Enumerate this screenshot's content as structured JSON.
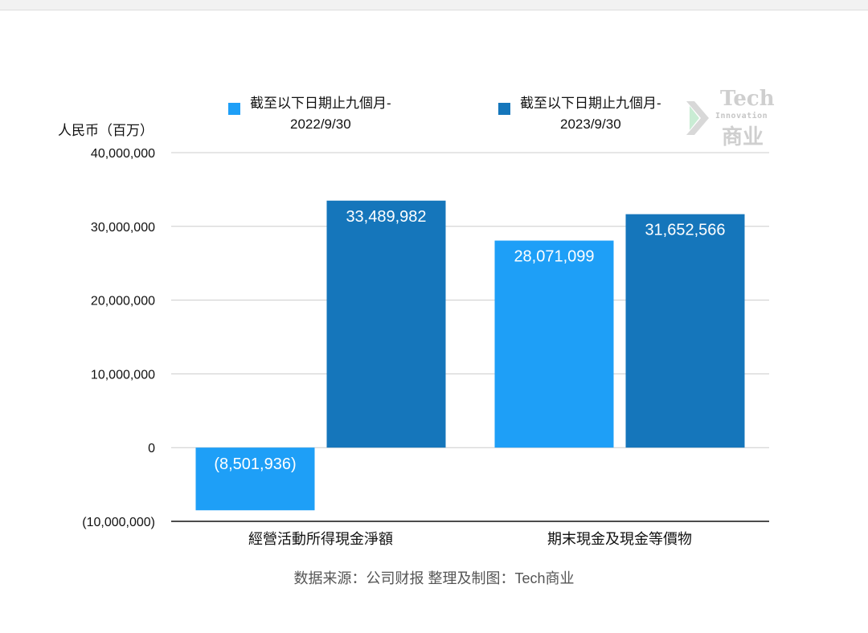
{
  "chart_data": {
    "type": "bar",
    "ylabel": "人民币（百万）",
    "ylim": [
      -10000000,
      40000000
    ],
    "y_ticks": [
      40000000,
      30000000,
      20000000,
      10000000,
      0,
      -10000000
    ],
    "y_tick_labels": [
      "40,000,000",
      "30,000,000",
      "20,000,000",
      "10,000,000",
      "0",
      "(10,000,000)"
    ],
    "categories": [
      "經營活動所得現金淨額",
      "期末現金及現金等價物"
    ],
    "series": [
      {
        "name_lines": [
          "截至以下日期止九個月-",
          "2022/9/30"
        ],
        "color": "#1e9ff7",
        "values": [
          -8501936,
          28071099
        ],
        "labels": [
          "(8,501,936)",
          "28,071,099"
        ]
      },
      {
        "name_lines": [
          "截至以下日期止九個月-",
          "2023/9/30"
        ],
        "color": "#1576bb",
        "values": [
          33489982,
          31652566
        ],
        "labels": [
          "33,489,982",
          "31,652,566"
        ]
      }
    ],
    "legend_position": "top",
    "grid": true
  },
  "watermark": {
    "tech": "Tech",
    "innovation": "Innovation",
    "cn": "商业"
  },
  "source": "数据来源：公司财报 整理及制图：Tech商业"
}
